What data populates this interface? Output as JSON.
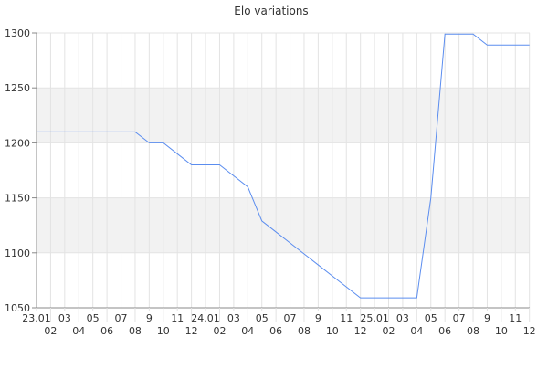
{
  "chart_data": {
    "type": "line",
    "title": "Elo variations",
    "xlabel": "",
    "ylabel": "",
    "ylim": [
      1050,
      1300
    ],
    "yticks": [
      1050,
      1100,
      1150,
      1200,
      1250,
      1300
    ],
    "grid": true,
    "shaded_bands": [
      [
        1100,
        1150
      ],
      [
        1200,
        1250
      ]
    ],
    "categories": [
      "23.01",
      "02",
      "03",
      "04",
      "05",
      "06",
      "07",
      "08",
      "9",
      "10",
      "11",
      "12",
      "24.01",
      "02",
      "03",
      "04",
      "05",
      "06",
      "07",
      "08",
      "9",
      "10",
      "11",
      "12",
      "25.01",
      "02",
      "03",
      "04",
      "05",
      "06",
      "07",
      "08",
      "9",
      "10",
      "11",
      "12"
    ],
    "series": [
      {
        "color": "#5b8def",
        "values": [
          1210,
          1210,
          1210,
          1210,
          1210,
          1210,
          1210,
          1210,
          1200,
          1200,
          1190,
          1180,
          1180,
          1180,
          1170,
          1160,
          1129,
          1119,
          1109,
          1099,
          1089,
          1079,
          1069,
          1059,
          1059,
          1059,
          1059,
          1059,
          1150,
          1299,
          1299,
          1299,
          1289,
          1289,
          1289,
          1289
        ]
      }
    ],
    "colors": {
      "line": "#5b8def",
      "band": "#f2f2f2",
      "grid": "#e3e3e3",
      "axis": "#888888"
    }
  }
}
